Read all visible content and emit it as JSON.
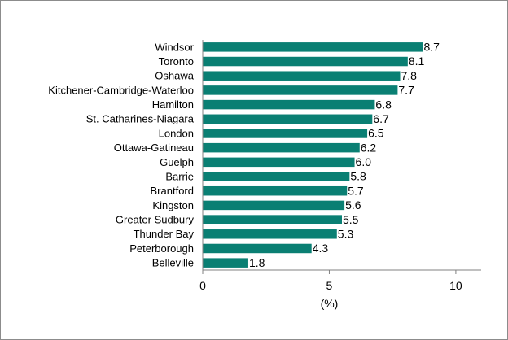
{
  "chart_data": {
    "type": "bar",
    "orientation": "horizontal",
    "categories": [
      "Windsor",
      "Toronto",
      "Oshawa",
      "Kitchener-Cambridge-Waterloo",
      "Hamilton",
      "St. Catharines-Niagara",
      "London",
      "Ottawa-Gatineau",
      "Guelph",
      "Barrie",
      "Brantford",
      "Kingston",
      "Greater Sudbury",
      "Thunder Bay",
      "Peterborough",
      "Belleville"
    ],
    "values": [
      8.7,
      8.1,
      7.8,
      7.7,
      6.8,
      6.7,
      6.5,
      6.2,
      6.0,
      5.8,
      5.7,
      5.6,
      5.5,
      5.3,
      4.3,
      1.8
    ],
    "value_labels": [
      "8.7",
      "8.1",
      "7.8",
      "7.7",
      "6.8",
      "6.7",
      "6.5",
      "6.2",
      "6.0",
      "5.8",
      "5.7",
      "5.6",
      "5.5",
      "5.3",
      "4.3",
      "1.8"
    ],
    "title": "",
    "xlabel": "(%)",
    "ylabel": "",
    "xlim": [
      0,
      11
    ],
    "xticks": [
      0,
      5,
      10
    ],
    "xtick_labels": [
      "0",
      "5",
      "10"
    ],
    "grid": false,
    "bar_color": "#0a7f73"
  }
}
